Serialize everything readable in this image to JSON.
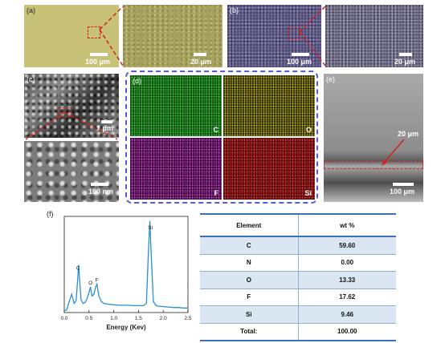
{
  "panels": {
    "a": {
      "label": "(a)",
      "scale": "100 μm"
    },
    "a_zoom": {
      "scale": "20 μm"
    },
    "b": {
      "label": "(b)",
      "scale": "100 μm"
    },
    "b_zoom": {
      "scale": "20 μm"
    },
    "c": {
      "label": "(c)",
      "scale": "1 μm"
    },
    "c_zoom": {
      "scale": "100 nm"
    },
    "d": {
      "label": "(d)",
      "maps": [
        {
          "element": "C",
          "color": "#1d9d1d"
        },
        {
          "element": "O",
          "color": "#938600"
        },
        {
          "element": "F",
          "color": "#8c178c"
        },
        {
          "element": "Si",
          "color": "#b00e0e"
        }
      ],
      "frame_color": "#5a5ad6"
    },
    "e": {
      "label": "(e)",
      "annotation": "20 μm",
      "scale": "100 μm"
    },
    "f": {
      "label": "(f)"
    }
  },
  "chart_data": {
    "type": "line",
    "xlabel": "Energy (Kev)",
    "ylabel": "",
    "xlim": [
      0.0,
      2.5
    ],
    "xticks": [
      "0.0",
      "0.5",
      "1.0",
      "1.5",
      "2.0",
      "2.5"
    ],
    "line_color": "#2a8fd0",
    "series": [
      {
        "x": [
          0.0,
          0.05,
          0.1,
          0.15,
          0.2,
          0.24,
          0.27,
          0.29,
          0.31,
          0.34,
          0.38,
          0.42,
          0.46,
          0.5,
          0.53,
          0.56,
          0.6,
          0.63,
          0.66,
          0.7,
          0.75,
          0.8,
          0.9,
          1.0,
          1.1,
          1.2,
          1.3,
          1.4,
          1.5,
          1.6,
          1.66,
          1.7,
          1.73,
          1.76,
          1.8,
          1.85,
          1.9,
          2.0,
          2.1,
          2.2,
          2.3,
          2.4,
          2.5
        ],
        "y": [
          2,
          3,
          12,
          20,
          10,
          13,
          35,
          52,
          36,
          14,
          10,
          11,
          15,
          22,
          28,
          18,
          20,
          27,
          31,
          18,
          12,
          10,
          9,
          8.5,
          8,
          8,
          8,
          7.5,
          7.5,
          7.5,
          10,
          65,
          100,
          60,
          12,
          8,
          7,
          6.5,
          6,
          5.5,
          5.5,
          5,
          5
        ]
      }
    ],
    "peaks": [
      {
        "label": "C",
        "x": 0.28
      },
      {
        "label": "O",
        "x": 0.53
      },
      {
        "label": "F",
        "x": 0.66
      },
      {
        "label": "Si",
        "x": 1.74
      }
    ]
  },
  "table": {
    "headers": [
      "Element",
      "wt %"
    ],
    "rows": [
      [
        "C",
        "59.60"
      ],
      [
        "N",
        "0.00"
      ],
      [
        "O",
        "13.33"
      ],
      [
        "F",
        "17.62"
      ],
      [
        "Si",
        "9.46"
      ],
      [
        "Total:",
        "100.00"
      ]
    ]
  },
  "colors": {
    "zoom_indicator": "#d42020",
    "table_rule": "#3b6fb6",
    "table_alt_row": "#dbe6f3"
  }
}
